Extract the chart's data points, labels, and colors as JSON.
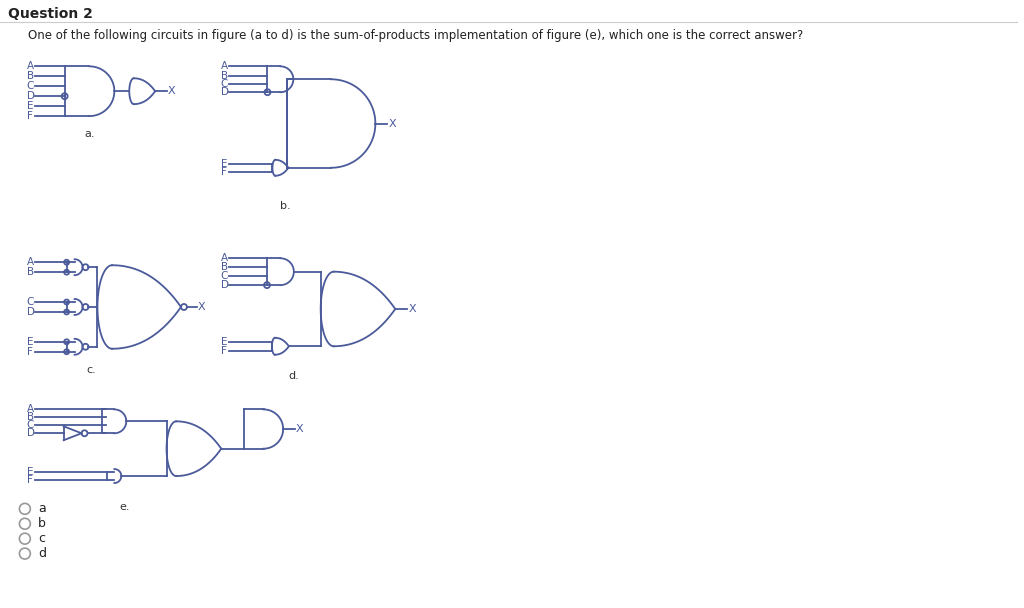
{
  "title": "Question 2",
  "question_text": "One of the following circuits in figure (a to d) is the sum-of-products implementation of figure (e), which one is the correct answer?",
  "bg_color": "#ffffff",
  "line_color": "#4a5a9a",
  "text_color": "#4a5a9a",
  "label_dark": "#222222",
  "radio_options": [
    "a",
    "b",
    "c",
    "d"
  ],
  "fig_labels": [
    "a.",
    "b.",
    "c.",
    "d.",
    "e."
  ]
}
